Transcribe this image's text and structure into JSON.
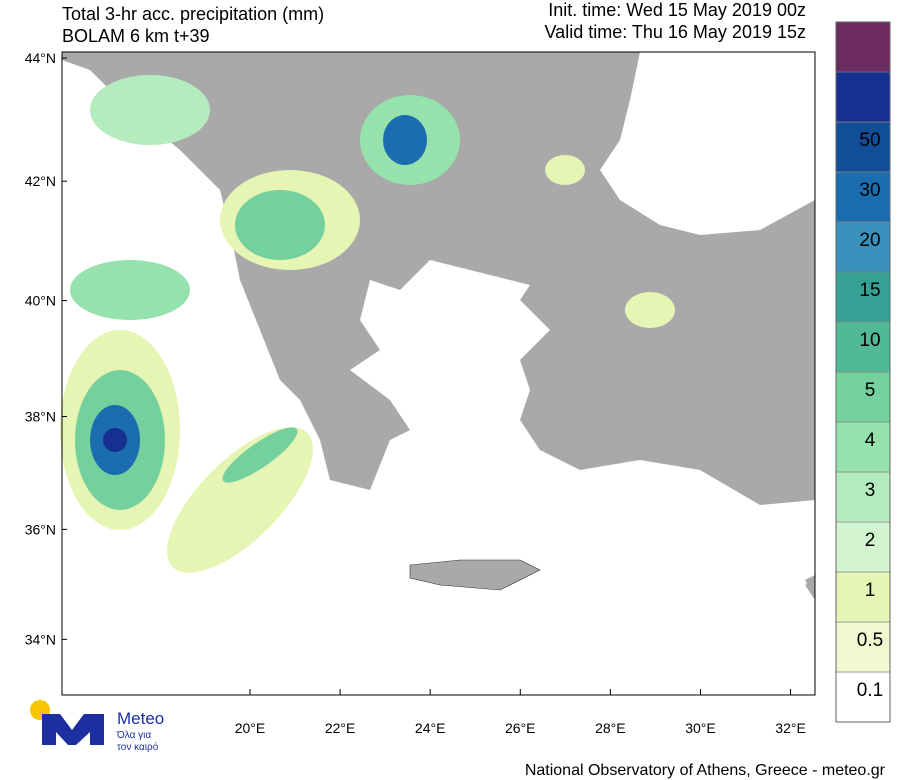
{
  "header": {
    "title": "Total 3-hr acc. precipitation (mm)",
    "model": "BOLAM 6 km t+39",
    "init_time": "Init. time: Wed 15 May 2019 00z",
    "valid_time": "Valid time: Thu 16 May 2019 15z"
  },
  "map": {
    "lat_ticks": [
      {
        "value": 44,
        "label": "44°N"
      },
      {
        "value": 42,
        "label": "42°N"
      },
      {
        "value": 40,
        "label": "40°N"
      },
      {
        "value": 38,
        "label": "38°N"
      },
      {
        "value": 36,
        "label": "36°N"
      },
      {
        "value": 34,
        "label": "34°N"
      }
    ],
    "lon_ticks": [
      {
        "value": 20,
        "label": "20°E"
      },
      {
        "value": 22,
        "label": "22°E"
      },
      {
        "value": 24,
        "label": "24°E"
      },
      {
        "value": 26,
        "label": "26°E"
      },
      {
        "value": 28,
        "label": "28°E"
      },
      {
        "value": 30,
        "label": "30°E"
      },
      {
        "value": 32,
        "label": "32°E"
      }
    ]
  },
  "colorbar": {
    "levels": [
      0.1,
      0.5,
      1,
      2,
      3,
      4,
      5,
      10,
      15,
      20,
      30,
      50
    ],
    "colors": [
      "#ffffff",
      "#f1f8cf",
      "#e6f4b4",
      "#d2f5cf",
      "#b4ecbf",
      "#95e2ad",
      "#74d19e",
      "#52b996",
      "#35a194",
      "#3a8fbb",
      "#1c6db0",
      "#124e98",
      "#15308f",
      "#6b2b5e"
    ]
  },
  "logo": {
    "name": "Meteo",
    "tagline": [
      "Όλα για",
      "τον καιρό"
    ]
  },
  "footer": "National Observatory of Athens, Greece - meteo.gr"
}
